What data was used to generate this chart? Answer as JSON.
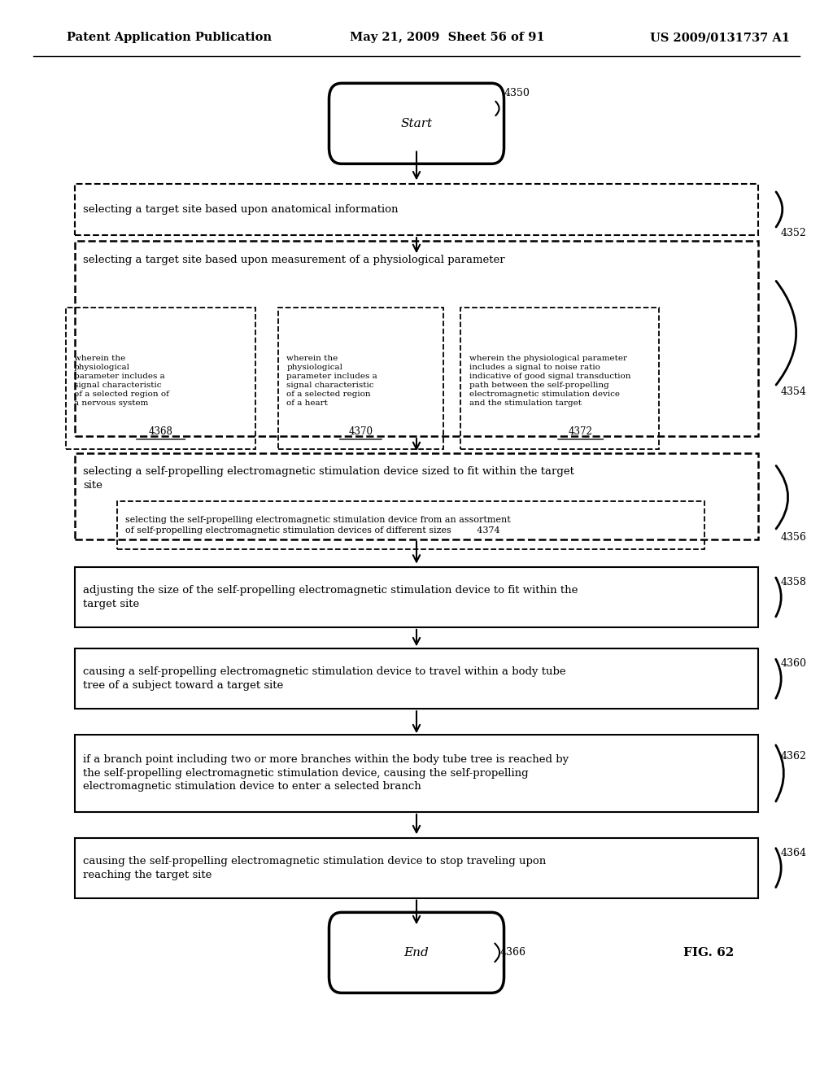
{
  "title_left": "Patent Application Publication",
  "title_center": "May 21, 2009  Sheet 56 of 91",
  "title_right": "US 2009/0131737 A1",
  "fig_label": "FIG. 62",
  "background_color": "#ffffff"
}
